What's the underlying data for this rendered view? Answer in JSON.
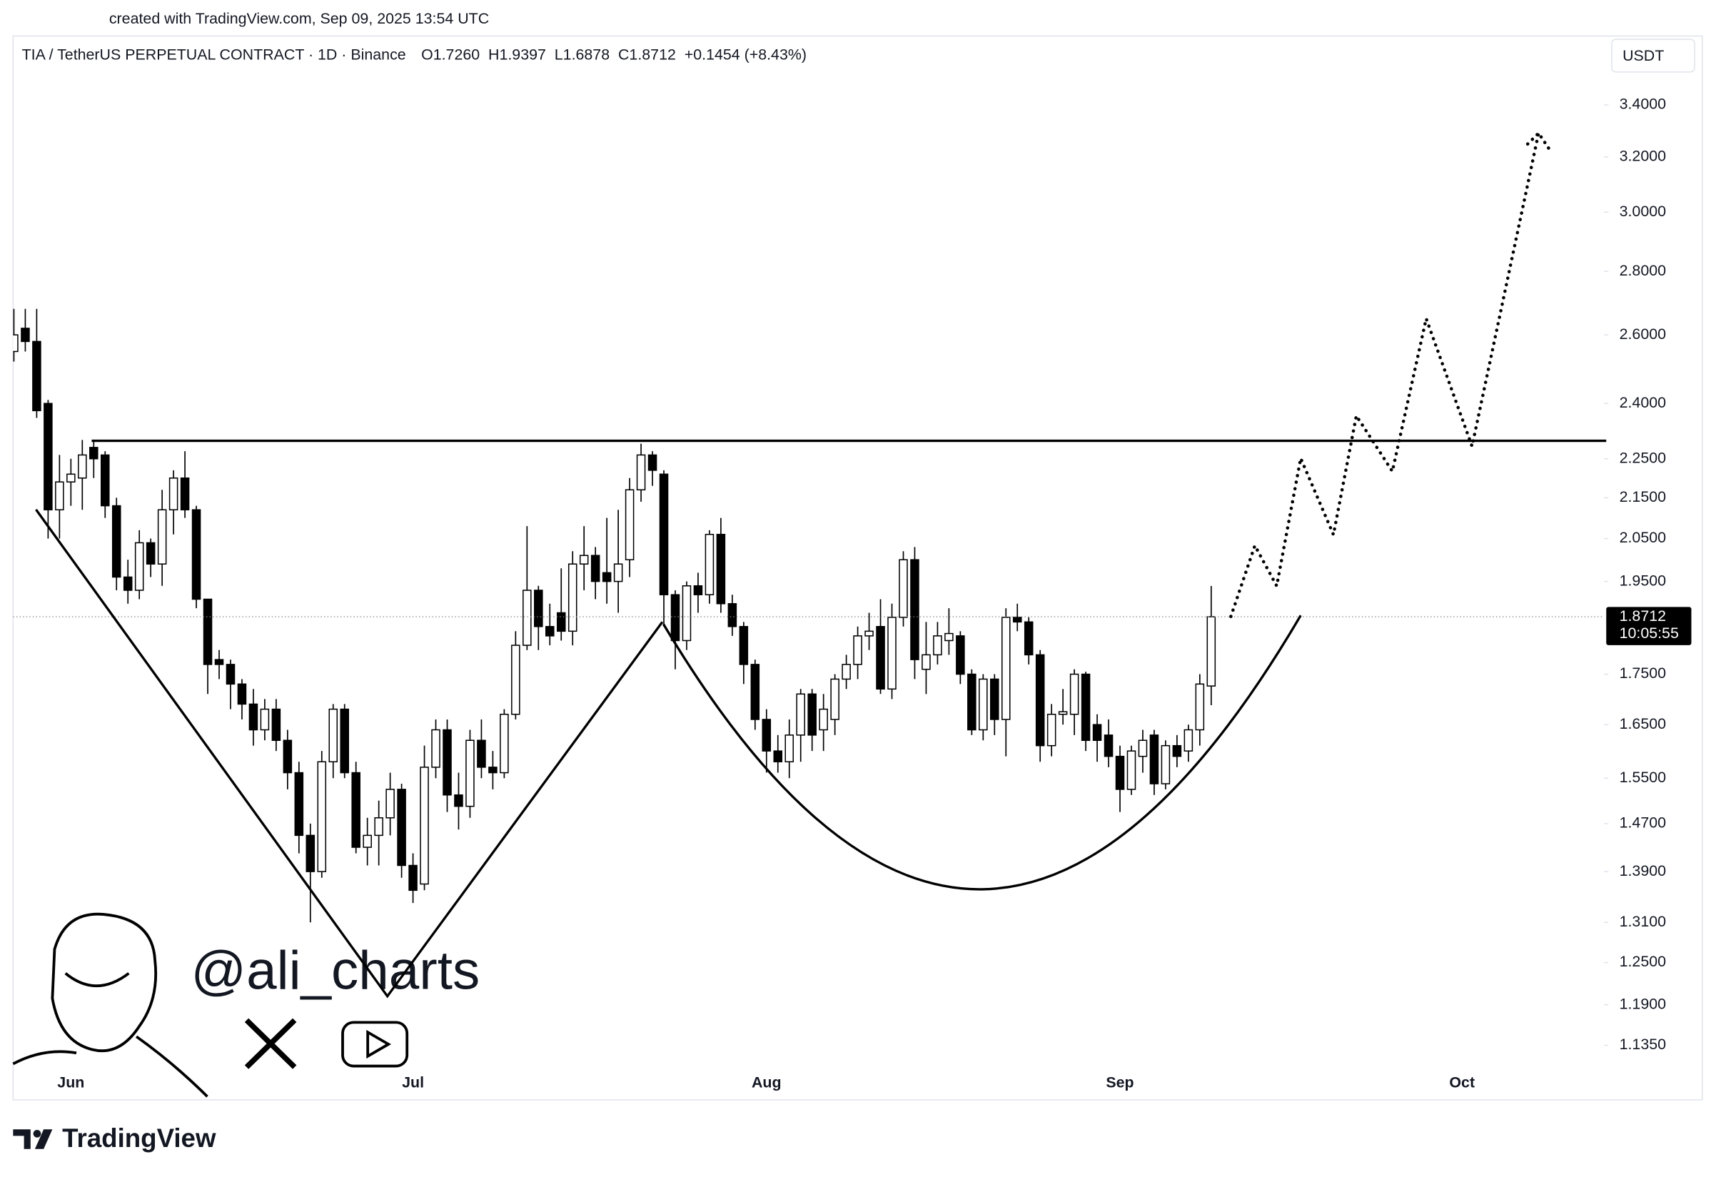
{
  "header": {
    "created": "created with TradingView.com, Sep 09, 2025 13:54 UTC",
    "symbol": "TIA / TetherUS PERPETUAL CONTRACT · 1D · Binance",
    "ohlc": "O1.7260  H1.9397  L1.6878  C1.8712  +0.1454 (+8.43%)",
    "currency": "USDT"
  },
  "watermark": "@ali_charts",
  "footer": {
    "logo": "TradingView"
  },
  "chart_data": {
    "type": "candlestick",
    "categories": [
      null,
      null,
      null,
      null,
      null,
      "Jun",
      null,
      null,
      null,
      null,
      null,
      null,
      null,
      null,
      null,
      null,
      null,
      null,
      null,
      null,
      null,
      null,
      null,
      null,
      null,
      null,
      null,
      null,
      null,
      null,
      null,
      null,
      null,
      null,
      null,
      "Jul",
      null,
      null,
      null,
      null,
      null,
      null,
      null,
      null,
      null,
      null,
      null,
      null,
      null,
      null,
      null,
      null,
      null,
      null,
      null,
      null,
      null,
      null,
      null,
      null,
      null,
      null,
      null,
      null,
      null,
      null,
      "Aug",
      null,
      null,
      null,
      null,
      null,
      null,
      null,
      null,
      null,
      null,
      null,
      null,
      null,
      null,
      null,
      null,
      null,
      null,
      null,
      null,
      null,
      null,
      null,
      null,
      null,
      null,
      null,
      null,
      null,
      null,
      "Sep",
      null,
      null,
      null,
      null,
      null,
      null,
      null,
      null,
      null,
      null,
      null,
      null,
      null,
      null,
      null,
      null,
      null,
      null,
      null,
      null,
      null,
      null,
      null,
      null,
      null,
      null,
      null,
      null,
      null,
      "Oct",
      null,
      null,
      null,
      null,
      null,
      null,
      null,
      null,
      null,
      null,
      null,
      null
    ],
    "open": [
      2.55,
      2.62,
      2.58,
      2.4,
      2.12,
      2.19,
      2.2,
      2.28,
      2.26,
      2.13,
      1.96,
      1.93,
      2.04,
      1.99,
      2.12,
      2.2,
      2.12,
      1.91,
      1.78,
      1.77,
      1.73,
      1.69,
      1.64,
      1.68,
      1.62,
      1.56,
      1.45,
      1.39,
      1.58,
      1.68,
      1.56,
      1.43,
      1.45,
      1.48,
      1.53,
      1.4,
      1.37,
      1.57,
      1.64,
      1.52,
      1.5,
      1.62,
      1.57,
      1.56,
      1.67,
      1.81,
      1.93,
      1.85,
      1.88,
      1.84,
      1.99,
      2.01,
      1.97,
      1.95,
      2.0,
      2.17,
      2.26,
      2.21,
      1.92,
      1.82,
      1.94,
      1.92,
      2.06,
      1.9,
      1.85,
      1.77,
      1.66,
      1.6,
      1.58,
      1.63,
      1.71,
      1.64,
      1.66,
      1.74,
      1.77,
      1.83,
      1.85,
      1.72,
      1.87,
      2.0,
      1.76,
      1.79,
      1.82,
      1.83,
      1.75,
      1.64,
      1.74,
      1.66,
      1.87,
      1.86,
      1.79,
      1.61,
      1.67,
      1.67,
      1.75,
      1.65,
      1.63,
      1.59,
      1.53,
      1.59,
      1.63,
      1.54,
      1.61,
      1.6,
      1.64,
      1.726,
      null,
      null,
      null,
      null,
      null,
      null,
      null,
      null,
      null,
      null,
      null,
      null,
      null,
      null,
      null,
      null,
      null,
      null,
      null,
      null,
      null,
      null,
      null,
      null,
      null,
      null,
      null,
      null,
      null,
      null,
      null,
      null,
      null,
      null
    ],
    "high": [
      2.68,
      2.68,
      2.68,
      2.41,
      2.26,
      2.25,
      2.3,
      2.3,
      2.27,
      2.15,
      2.0,
      2.07,
      2.05,
      2.17,
      2.22,
      2.27,
      2.13,
      1.91,
      1.8,
      1.78,
      1.74,
      1.72,
      1.7,
      1.7,
      1.64,
      1.58,
      1.47,
      1.6,
      1.69,
      1.69,
      1.58,
      1.48,
      1.51,
      1.56,
      1.54,
      1.42,
      1.61,
      1.66,
      1.66,
      1.56,
      1.64,
      1.66,
      1.6,
      1.68,
      1.84,
      2.08,
      1.94,
      1.9,
      1.98,
      2.02,
      2.08,
      2.03,
      2.1,
      2.12,
      2.2,
      2.29,
      2.27,
      2.22,
      1.93,
      1.95,
      1.97,
      2.07,
      2.1,
      1.92,
      1.86,
      1.78,
      1.68,
      1.63,
      1.66,
      1.72,
      1.72,
      1.71,
      1.75,
      1.79,
      1.85,
      1.88,
      1.91,
      1.9,
      2.02,
      2.03,
      1.86,
      1.86,
      1.89,
      1.84,
      1.76,
      1.75,
      1.75,
      1.89,
      1.9,
      1.87,
      1.8,
      1.69,
      1.72,
      1.76,
      1.755,
      1.67,
      1.66,
      1.61,
      1.61,
      1.64,
      1.64,
      1.62,
      1.63,
      1.65,
      1.75,
      1.9397,
      null,
      null,
      null,
      null,
      null,
      null,
      null,
      null,
      null,
      null,
      null,
      null,
      null,
      null,
      null,
      null,
      null,
      null,
      null,
      null,
      null,
      null,
      null,
      null,
      null,
      null,
      null,
      null,
      null,
      null,
      null,
      null,
      null,
      null
    ],
    "low": [
      2.52,
      2.55,
      2.36,
      2.05,
      2.05,
      2.13,
      2.12,
      2.2,
      2.1,
      1.93,
      1.9,
      1.91,
      1.96,
      1.94,
      2.06,
      2.1,
      1.89,
      1.71,
      1.74,
      1.68,
      1.66,
      1.61,
      1.62,
      1.6,
      1.53,
      1.42,
      1.31,
      1.38,
      1.55,
      1.55,
      1.42,
      1.4,
      1.4,
      1.45,
      1.38,
      1.34,
      1.36,
      1.55,
      1.49,
      1.46,
      1.48,
      1.55,
      1.53,
      1.55,
      1.66,
      1.8,
      1.8,
      1.81,
      1.82,
      1.81,
      1.93,
      1.91,
      1.9,
      1.88,
      1.96,
      2.14,
      2.18,
      1.85,
      1.76,
      1.8,
      1.88,
      1.9,
      1.88,
      1.83,
      1.73,
      1.64,
      1.56,
      1.56,
      1.55,
      1.58,
      1.6,
      1.6,
      1.63,
      1.72,
      1.74,
      1.8,
      1.71,
      1.7,
      1.85,
      1.74,
      1.71,
      1.77,
      1.79,
      1.73,
      1.63,
      1.62,
      1.63,
      1.59,
      1.84,
      1.77,
      1.58,
      1.59,
      1.65,
      1.63,
      1.6,
      1.58,
      1.57,
      1.49,
      1.52,
      1.56,
      1.52,
      1.53,
      1.57,
      1.58,
      1.61,
      1.6878,
      null,
      null,
      null,
      null,
      null,
      null,
      null,
      null,
      null,
      null,
      null,
      null,
      null,
      null,
      null,
      null,
      null,
      null,
      null,
      null,
      null,
      null,
      null,
      null,
      null,
      null,
      null,
      null,
      null,
      null,
      null,
      null,
      null,
      null
    ],
    "close": [
      2.6,
      2.58,
      2.38,
      2.12,
      2.19,
      2.21,
      2.26,
      2.25,
      2.13,
      1.96,
      1.93,
      2.04,
      1.99,
      2.12,
      2.2,
      2.12,
      1.91,
      1.77,
      1.77,
      1.73,
      1.69,
      1.64,
      1.68,
      1.62,
      1.56,
      1.45,
      1.39,
      1.58,
      1.68,
      1.56,
      1.43,
      1.45,
      1.48,
      1.53,
      1.4,
      1.36,
      1.57,
      1.64,
      1.52,
      1.5,
      1.62,
      1.57,
      1.56,
      1.67,
      1.81,
      1.93,
      1.85,
      1.83,
      1.84,
      1.99,
      2.01,
      1.95,
      1.95,
      1.99,
      2.17,
      2.26,
      2.22,
      1.92,
      1.82,
      1.94,
      1.92,
      2.06,
      1.9,
      1.85,
      1.77,
      1.66,
      1.6,
      1.58,
      1.63,
      1.71,
      1.63,
      1.68,
      1.74,
      1.77,
      1.83,
      1.84,
      1.72,
      1.87,
      2.0,
      1.78,
      1.79,
      1.83,
      1.835,
      1.75,
      1.64,
      1.74,
      1.66,
      1.87,
      1.86,
      1.79,
      1.61,
      1.67,
      1.675,
      1.75,
      1.62,
      1.62,
      1.59,
      1.53,
      1.6,
      1.62,
      1.54,
      1.61,
      1.59,
      1.64,
      1.73,
      1.8712,
      null,
      null,
      null,
      null,
      null,
      null,
      null,
      null,
      null,
      null,
      null,
      null,
      null,
      null,
      null,
      null,
      null,
      null,
      null,
      null,
      null,
      null,
      null,
      null,
      null,
      null,
      null,
      null,
      null,
      null,
      null,
      null,
      null,
      null
    ],
    "up_color": "#ffffff",
    "down_color": "#000000",
    "wick_color": "#000000",
    "countdown": "10:05:55",
    "log_scale": true,
    "ylim": [
      1.065,
      3.68
    ],
    "yticks": [
      {
        "value": 3.4,
        "label": "3.4000"
      },
      {
        "value": 3.2,
        "label": "3.2000"
      },
      {
        "value": 3.0,
        "label": "3.0000"
      },
      {
        "value": 2.8,
        "label": "2.8000"
      },
      {
        "value": 2.6,
        "label": "2.6000"
      },
      {
        "value": 2.4,
        "label": "2.4000"
      },
      {
        "value": 2.25,
        "label": "2.2500"
      },
      {
        "value": 2.15,
        "label": "2.1500"
      },
      {
        "value": 2.05,
        "label": "2.0500"
      },
      {
        "value": 1.95,
        "label": "1.9500"
      },
      {
        "value": 1.75,
        "label": "1.7500"
      },
      {
        "value": 1.65,
        "label": "1.6500"
      },
      {
        "value": 1.55,
        "label": "1.5500"
      },
      {
        "value": 1.47,
        "label": "1.4700"
      },
      {
        "value": 1.39,
        "label": "1.3900"
      },
      {
        "value": 1.31,
        "label": "1.3100"
      },
      {
        "value": 1.25,
        "label": "1.2500"
      },
      {
        "value": 1.19,
        "label": "1.1900"
      },
      {
        "value": 1.135,
        "label": "1.1350"
      }
    ],
    "grid": false
  }
}
